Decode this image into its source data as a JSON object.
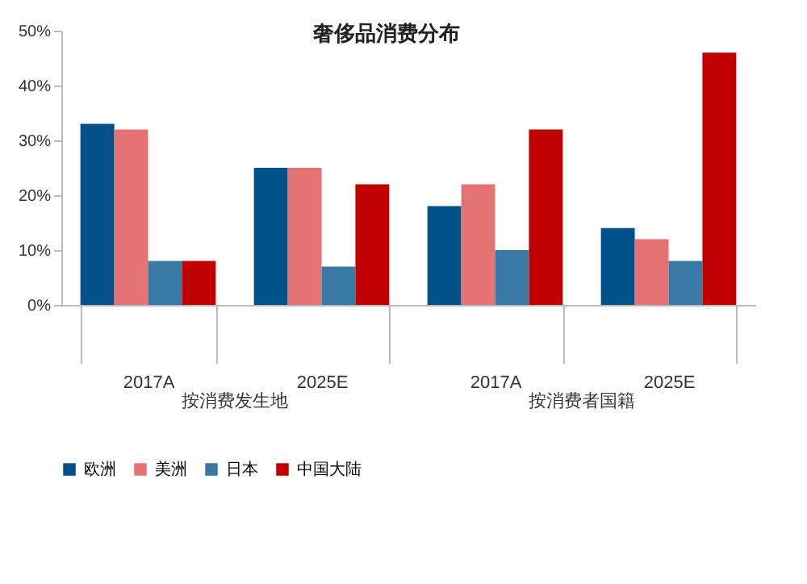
{
  "chart_data": {
    "type": "bar",
    "title": "奢侈品消费分布",
    "categories": [
      "2017A",
      "2025E",
      "2017A",
      "2025E"
    ],
    "series": [
      {
        "name": "欧洲",
        "color": "#00508a",
        "values": [
          33,
          25,
          18,
          14
        ]
      },
      {
        "name": "美洲",
        "color": "#e67373",
        "values": [
          32,
          25,
          22,
          12
        ]
      },
      {
        "name": "日本",
        "color": "#3a78a5",
        "values": [
          8,
          7,
          10,
          8
        ]
      },
      {
        "name": "中国大陆",
        "color": "#c00000",
        "values": [
          8,
          22,
          32,
          46
        ]
      }
    ],
    "ylim": [
      0,
      50
    ],
    "yticks": [
      {
        "value": 0,
        "label": "0%"
      },
      {
        "value": 10,
        "label": "10%"
      },
      {
        "value": 20,
        "label": "20%"
      },
      {
        "value": 30,
        "label": "30%"
      },
      {
        "value": 40,
        "label": "40%"
      },
      {
        "value": 50,
        "label": "50%"
      }
    ],
    "annotations": [
      "按消费发生地",
      "按消费者国籍"
    ],
    "grid": false,
    "legend": "bottom"
  }
}
